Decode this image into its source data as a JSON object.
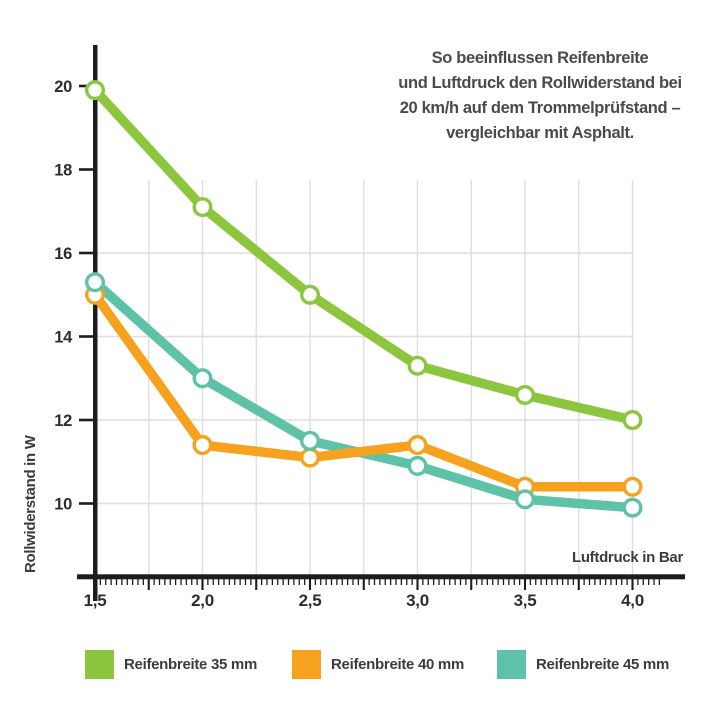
{
  "annotation": {
    "lines": [
      "So beeinflussen Reifenbreite",
      "und Luftdruck den Rollwiderstand bei",
      "20 km/h auf dem Trommelprüfstand –",
      "vergleichbar mit Asphalt."
    ]
  },
  "axes": {
    "ylabel": "Rollwiderstand in W",
    "xlabel": "Luftdruck in Bar"
  },
  "colors": {
    "axis": "#1d1d1b",
    "grid": "#dedede",
    "tick_text": "#2d2d2b",
    "label_text": "#3c3c3b",
    "annotation_text": "#4a4a49",
    "green": "#8cc63f",
    "orange": "#f6a21e",
    "teal": "#5ec2a8"
  },
  "chart_data": {
    "type": "line",
    "title": "",
    "xlabel": "Luftdruck in Bar",
    "ylabel": "Rollwiderstand in W",
    "x": [
      1.5,
      2.0,
      2.5,
      3.0,
      3.5,
      4.0
    ],
    "x_tick_labels": [
      "1,5",
      "2,0",
      "2,5",
      "3,0",
      "3,5",
      "4,0"
    ],
    "y_ticks": [
      20,
      18,
      16,
      14,
      12,
      10
    ],
    "y_tick_labels": [
      "20",
      "18",
      "16",
      "14",
      "12",
      "10"
    ],
    "xlim": [
      1.5,
      4.25
    ],
    "ylim": [
      8.8,
      21.0
    ],
    "grid": {
      "horizontal_at": [
        16,
        14,
        12,
        10
      ],
      "vertical_step_bar": 0.25,
      "minor_x_tick_step_bar": 0.025
    },
    "legend_position": "bottom",
    "marker": "open-circle",
    "series": [
      {
        "name": "Reifenbreite 35 mm",
        "color": "#8cc63f",
        "values": [
          19.9,
          17.1,
          15.0,
          13.3,
          12.6,
          12.0
        ]
      },
      {
        "name": "Reifenbreite 40 mm",
        "color": "#f6a21e",
        "values": [
          15.0,
          11.4,
          11.1,
          11.4,
          10.4,
          10.4
        ]
      },
      {
        "name": "Reifenbreite 45 mm",
        "color": "#5ec2a8",
        "values": [
          15.3,
          13.0,
          11.5,
          10.9,
          10.1,
          9.9
        ]
      }
    ]
  }
}
